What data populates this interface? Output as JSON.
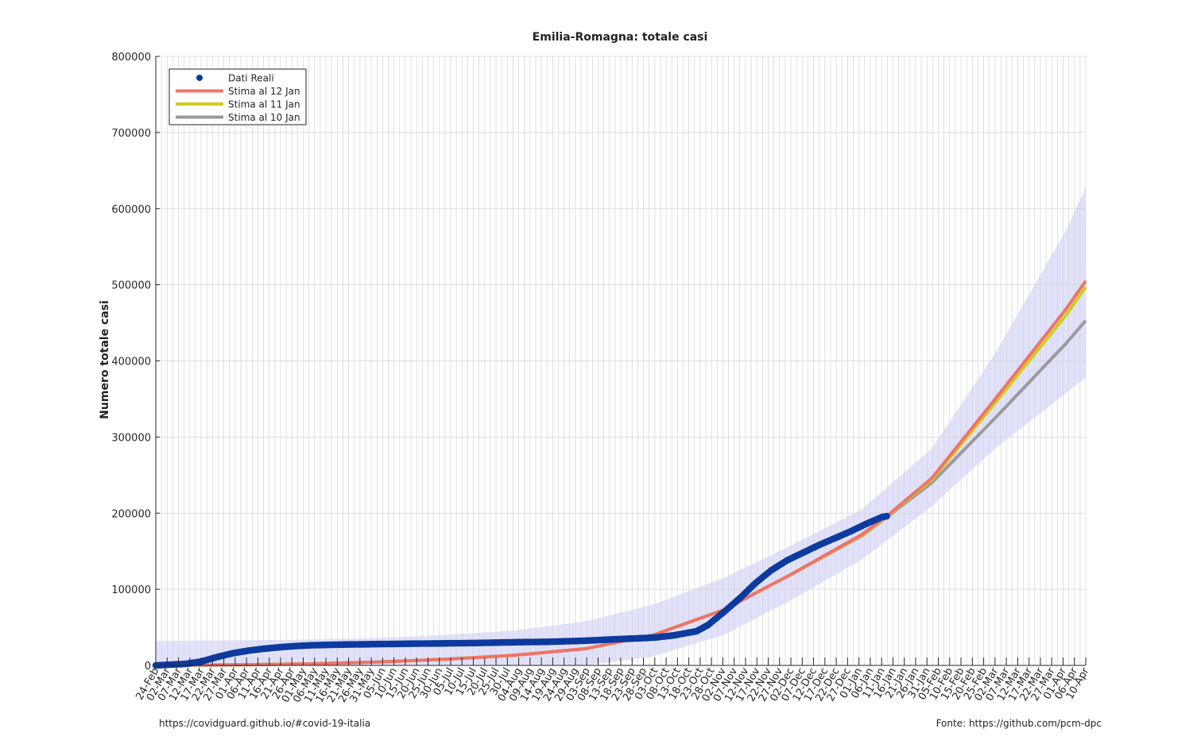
{
  "chart_data": {
    "type": "line",
    "title": "Emilia-Romagna: totale casi",
    "xlabel": "",
    "ylabel": "Numero totale casi",
    "ylim": [
      0,
      800000
    ],
    "yticks": [
      0,
      100000,
      200000,
      300000,
      400000,
      500000,
      600000,
      700000,
      800000
    ],
    "grid": true,
    "legend_position": "top-left",
    "x_start_date": "2020-02-24",
    "x_end_date": "2021-04-10",
    "x_tick_labels": [
      "24-Feb",
      "02-Mar",
      "07-Mar",
      "12-Mar",
      "17-Mar",
      "22-Mar",
      "27-Mar",
      "01-Apr",
      "06-Apr",
      "11-Apr",
      "16-Apr",
      "21-Apr",
      "26-Apr",
      "01-May",
      "06-May",
      "11-May",
      "16-May",
      "21-May",
      "26-May",
      "31-May",
      "05-Jun",
      "10-Jun",
      "15-Jun",
      "20-Jun",
      "25-Jun",
      "30-Jun",
      "05-Jul",
      "10-Jul",
      "15-Jul",
      "20-Jul",
      "25-Jul",
      "30-Jul",
      "04-Aug",
      "09-Aug",
      "14-Aug",
      "19-Aug",
      "24-Aug",
      "29-Aug",
      "03-Sep",
      "08-Sep",
      "13-Sep",
      "18-Sep",
      "23-Sep",
      "28-Sep",
      "03-Oct",
      "08-Oct",
      "13-Oct",
      "18-Oct",
      "23-Oct",
      "28-Oct",
      "02-Nov",
      "07-Nov",
      "12-Nov",
      "17-Nov",
      "22-Nov",
      "27-Nov",
      "02-Dec",
      "07-Dec",
      "12-Dec",
      "17-Dec",
      "22-Dec",
      "27-Dec",
      "01-Jan",
      "06-Jan",
      "11-Jan",
      "16-Jan",
      "21-Jan",
      "26-Jan",
      "31-Jan",
      "05-Feb",
      "10-Feb",
      "15-Feb",
      "20-Feb",
      "25-Feb",
      "02-Mar",
      "07-Mar",
      "12-Mar",
      "17-Mar",
      "22-Mar",
      "27-Mar",
      "01-Apr",
      "06-Apr",
      "10-Apr"
    ],
    "series": [
      {
        "name": "Dati Reali",
        "style": "markers",
        "color": "#0d3a9e",
        "x": [
          "2020-02-24",
          "2020-03-01",
          "2020-03-08",
          "2020-03-15",
          "2020-03-22",
          "2020-03-29",
          "2020-04-05",
          "2020-04-12",
          "2020-04-19",
          "2020-04-26",
          "2020-05-03",
          "2020-05-10",
          "2020-05-17",
          "2020-05-31",
          "2020-06-15",
          "2020-07-01",
          "2020-07-15",
          "2020-08-01",
          "2020-08-15",
          "2020-09-01",
          "2020-09-15",
          "2020-10-01",
          "2020-10-10",
          "2020-10-20",
          "2020-10-25",
          "2020-11-01",
          "2020-11-08",
          "2020-11-15",
          "2020-11-22",
          "2020-11-29",
          "2020-12-06",
          "2020-12-13",
          "2020-12-20",
          "2020-12-27",
          "2021-01-03",
          "2021-01-10",
          "2021-01-12"
        ],
        "y": [
          0,
          1000,
          2000,
          5000,
          11000,
          16000,
          19500,
          22000,
          24000,
          25500,
          26500,
          27000,
          27400,
          28000,
          28500,
          29000,
          29500,
          30500,
          31000,
          32500,
          34500,
          36500,
          39500,
          45000,
          53000,
          70000,
          88000,
          108000,
          125000,
          138000,
          148000,
          158000,
          167000,
          176000,
          186000,
          195000,
          196000
        ]
      },
      {
        "name": "Stima al 12 Jan",
        "style": "line",
        "color": "#f07368",
        "x": [
          "2020-02-24",
          "2020-04-01",
          "2020-05-01",
          "2020-06-01",
          "2020-07-01",
          "2020-08-01",
          "2020-09-01",
          "2020-10-01",
          "2020-11-01",
          "2020-12-01",
          "2021-01-01",
          "2021-01-12",
          "2021-02-01",
          "2021-03-01",
          "2021-04-01",
          "2021-04-10"
        ],
        "y": [
          0,
          800,
          2000,
          4500,
          8000,
          13500,
          22000,
          40000,
          73000,
          120000,
          172000,
          196000,
          246000,
          350000,
          467000,
          505000
        ]
      },
      {
        "name": "Stima al 11 Jan",
        "style": "line",
        "color": "#d0cd1c",
        "x": [
          "2020-02-24",
          "2020-04-01",
          "2020-05-01",
          "2020-06-01",
          "2020-07-01",
          "2020-08-01",
          "2020-09-01",
          "2020-10-01",
          "2020-11-01",
          "2020-12-01",
          "2021-01-01",
          "2021-01-11",
          "2021-02-01",
          "2021-03-01",
          "2021-04-01",
          "2021-04-10"
        ],
        "y": [
          0,
          800,
          2000,
          4500,
          8000,
          13500,
          22000,
          40000,
          73000,
          120000,
          171000,
          193000,
          244000,
          345000,
          459000,
          497000
        ]
      },
      {
        "name": "Stima al 10 Jan",
        "style": "line",
        "color": "#9a9a9a",
        "x": [
          "2020-02-24",
          "2020-04-01",
          "2020-05-01",
          "2020-06-01",
          "2020-07-01",
          "2020-08-01",
          "2020-09-01",
          "2020-10-01",
          "2020-11-01",
          "2020-12-01",
          "2021-01-01",
          "2021-01-10",
          "2021-02-01",
          "2021-03-01",
          "2021-04-01",
          "2021-04-10"
        ],
        "y": [
          0,
          800,
          2000,
          4500,
          8000,
          13500,
          22000,
          40000,
          73000,
          120000,
          170000,
          190000,
          240000,
          325000,
          422000,
          453000
        ]
      }
    ],
    "band": {
      "color": "#dcdcfa",
      "x": [
        "2020-02-24",
        "2020-04-01",
        "2020-05-01",
        "2020-06-01",
        "2020-07-01",
        "2020-08-01",
        "2020-09-01",
        "2020-10-01",
        "2020-11-01",
        "2020-12-01",
        "2021-01-01",
        "2021-02-01",
        "2021-03-01",
        "2021-04-01",
        "2021-04-10"
      ],
      "upper": [
        32000,
        33000,
        34000,
        36000,
        40000,
        46000,
        58000,
        80000,
        115000,
        158000,
        205000,
        285000,
        410000,
        570000,
        628000
      ],
      "lower": [
        0,
        0,
        0,
        0,
        0,
        0,
        0,
        12000,
        40000,
        86000,
        139000,
        209000,
        285000,
        357000,
        378000
      ]
    }
  },
  "footer": {
    "left": "https://covidguard.github.io/#covid-19-italia",
    "right": "Fonte: https://github.com/pcm-dpc"
  }
}
